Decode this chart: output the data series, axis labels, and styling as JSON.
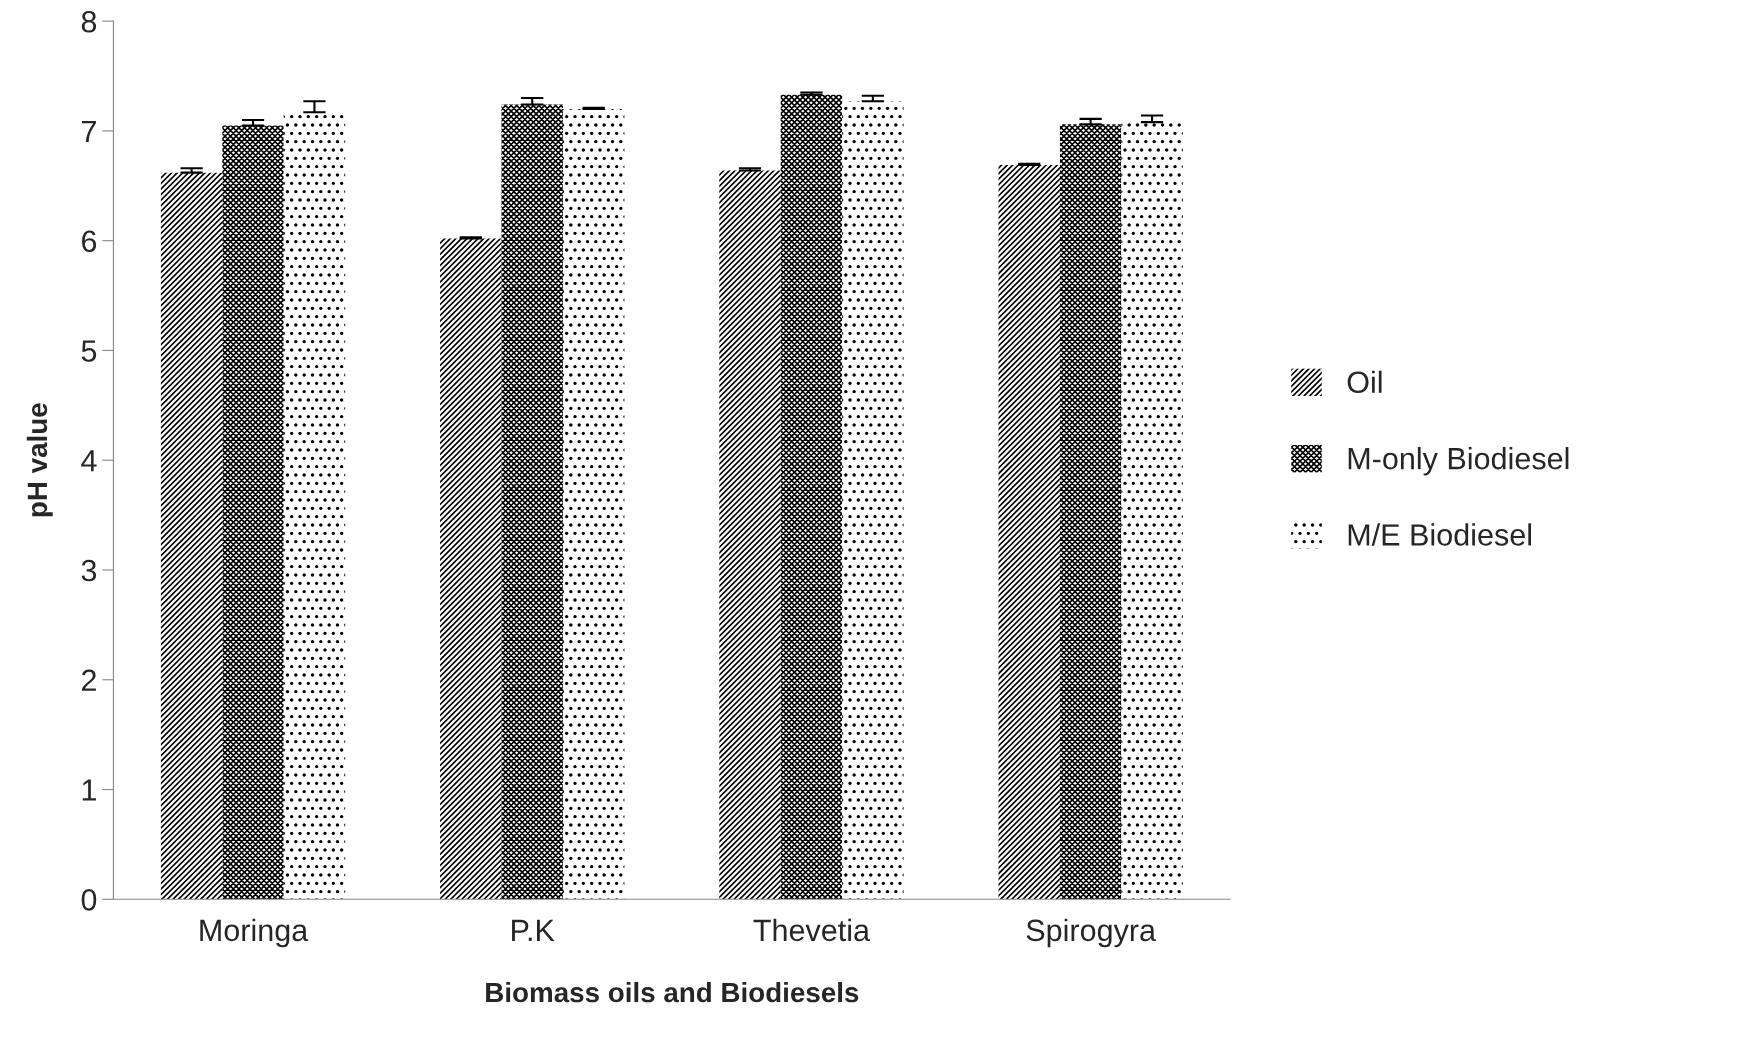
{
  "chart_data": {
    "type": "bar",
    "xlabel": "Biomass oils and Biodiesels",
    "ylabel": "pH value",
    "categories": [
      "Moringa",
      "P.K",
      "Thevetia",
      "Spirogyra"
    ],
    "series": [
      {
        "name": "Oil",
        "color": "#000000",
        "values": [
          6.62,
          6.02,
          6.64,
          6.69
        ],
        "errors": [
          [
            6.62,
            6.66
          ],
          [
            6.02,
            6.03
          ],
          [
            6.64,
            6.66
          ],
          [
            6.69,
            6.7
          ]
        ]
      },
      {
        "name": "M-only Biodiesel",
        "color": "#000000",
        "values": [
          7.05,
          7.24,
          7.33,
          7.06
        ],
        "errors": [
          [
            7.05,
            7.1
          ],
          [
            7.24,
            7.3
          ],
          [
            7.33,
            7.35
          ],
          [
            7.06,
            7.11
          ]
        ]
      },
      {
        "name": "M/E Biodiesel",
        "color": "#000000",
        "values": [
          7.17,
          7.2,
          7.27,
          7.08
        ],
        "errors": [
          [
            7.17,
            7.27
          ],
          [
            7.2,
            7.21
          ],
          [
            7.27,
            7.32
          ],
          [
            7.08,
            7.14
          ]
        ]
      }
    ],
    "ylim": [
      0,
      8
    ],
    "yticks": [
      0,
      1,
      2,
      3,
      4,
      5,
      6,
      7,
      8
    ],
    "grid": false,
    "legend": "right"
  }
}
